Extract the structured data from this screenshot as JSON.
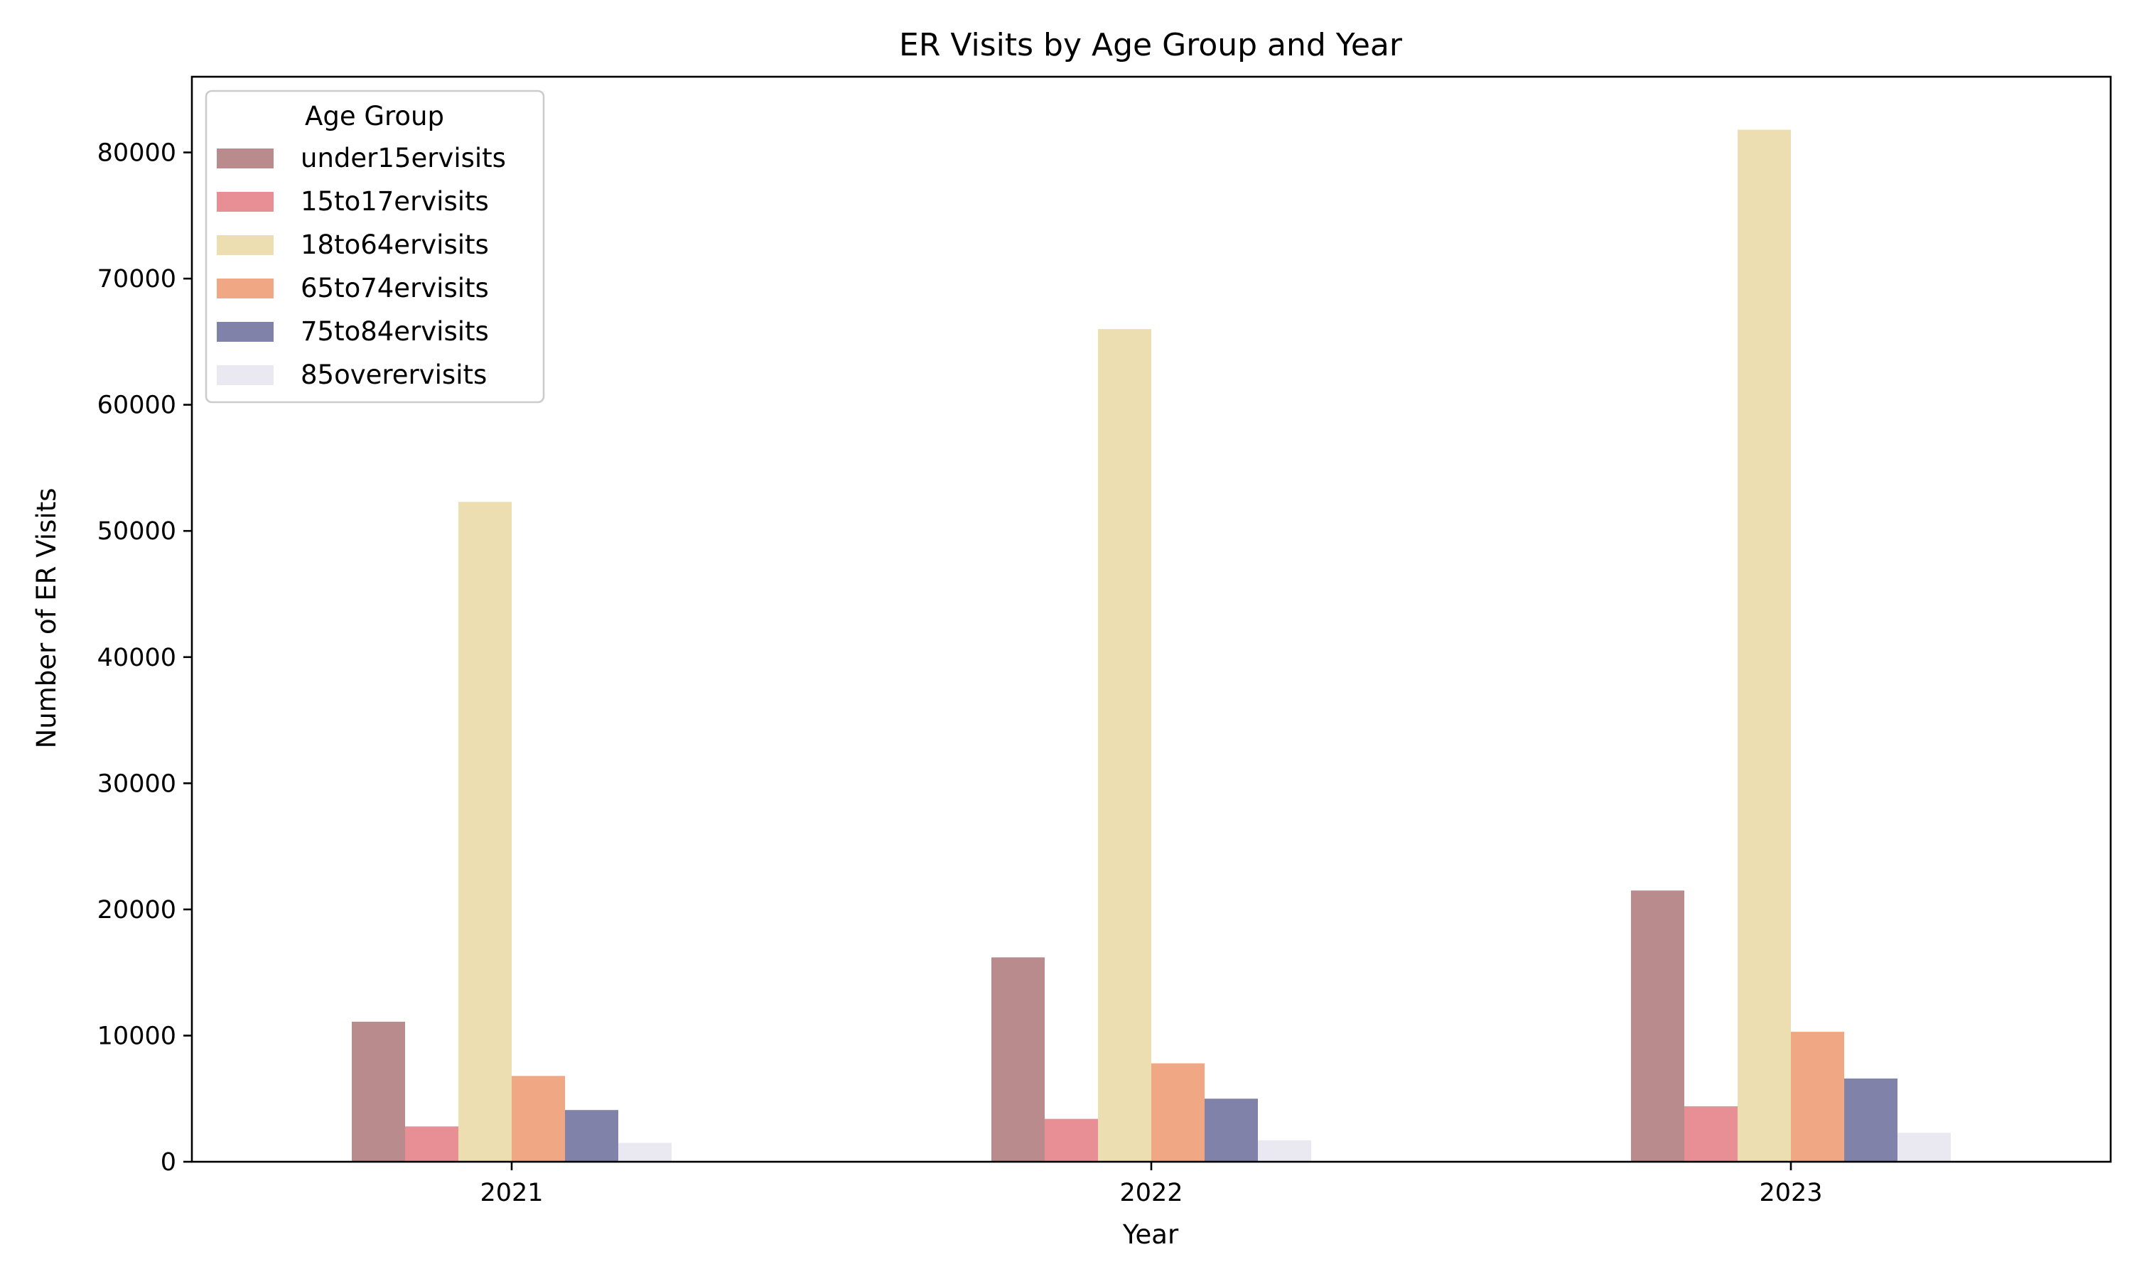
{
  "chart_data": {
    "type": "bar",
    "title": "ER Visits by Age Group and Year",
    "xlabel": "Year",
    "ylabel": "Number of ER Visits",
    "categories": [
      "2021",
      "2022",
      "2023"
    ],
    "ylim": [
      0,
      86000
    ],
    "yticks": [
      0,
      10000,
      20000,
      30000,
      40000,
      50000,
      60000,
      70000,
      80000
    ],
    "ytick_labels": [
      "0",
      "10000",
      "20000",
      "30000",
      "40000",
      "50000",
      "60000",
      "70000",
      "80000"
    ],
    "grid": false,
    "legend": {
      "title": "Age Group",
      "position": "top-left"
    },
    "series": [
      {
        "name": "under15ervisits",
        "color": "#b98b8c",
        "values": [
          11100,
          16200,
          21500
        ]
      },
      {
        "name": "15to17ervisits",
        "color": "#e78f95",
        "values": [
          2800,
          3400,
          4400
        ]
      },
      {
        "name": "18to64ervisits",
        "color": "#ecdeb1",
        "values": [
          52300,
          66000,
          81800
        ]
      },
      {
        "name": "65to74ervisits",
        "color": "#f0a784",
        "values": [
          6800,
          7800,
          10300
        ]
      },
      {
        "name": "75to84ervisits",
        "color": "#8082aa",
        "values": [
          4100,
          5000,
          6600
        ]
      },
      {
        "name": "85overervisits",
        "color": "#eae9f1",
        "values": [
          1500,
          1700,
          2300
        ]
      }
    ]
  }
}
